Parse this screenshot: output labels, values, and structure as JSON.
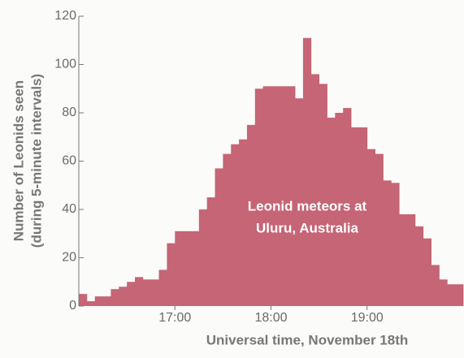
{
  "chart_data": {
    "type": "histogram",
    "xlabel": "Universal time, November 18th",
    "ylabel": [
      "Number of Leonids seen",
      "(during 5-minute intervals)"
    ],
    "annotation": [
      "Leonid meteors at",
      "Uluru, Australia"
    ],
    "color": "#c56575",
    "bins": [
      960,
      965,
      970,
      975,
      980,
      985,
      990,
      995,
      1000,
      1005,
      1010,
      1015,
      1020,
      1025,
      1030,
      1035,
      1040,
      1045,
      1050,
      1055,
      1060,
      1065,
      1070,
      1075,
      1080,
      1085,
      1090,
      1095,
      1100,
      1105,
      1110,
      1115,
      1120,
      1125,
      1130,
      1135,
      1140,
      1145,
      1150,
      1155,
      1160,
      1165,
      1170,
      1175,
      1180,
      1185,
      1190,
      1195,
      1200
    ],
    "counts": [
      5,
      2,
      4,
      4,
      7,
      8,
      10,
      12,
      11,
      11,
      15,
      26,
      31,
      31,
      31,
      40,
      45,
      57,
      63,
      67,
      69,
      75,
      90,
      91,
      91,
      91,
      91,
      86,
      111,
      96,
      92,
      78,
      80,
      82,
      74,
      74,
      65,
      63,
      52,
      51,
      38,
      38,
      33,
      28,
      17,
      11,
      9,
      9
    ],
    "xlim": [
      960,
      1200
    ],
    "xticks": [
      {
        "value": 1020,
        "label": "17:00"
      },
      {
        "value": 1080,
        "label": "18:00"
      },
      {
        "value": 1140,
        "label": "19:00"
      }
    ],
    "ylim": [
      0,
      120
    ],
    "yticks": [
      0,
      20,
      40,
      60,
      80,
      100,
      120
    ]
  }
}
